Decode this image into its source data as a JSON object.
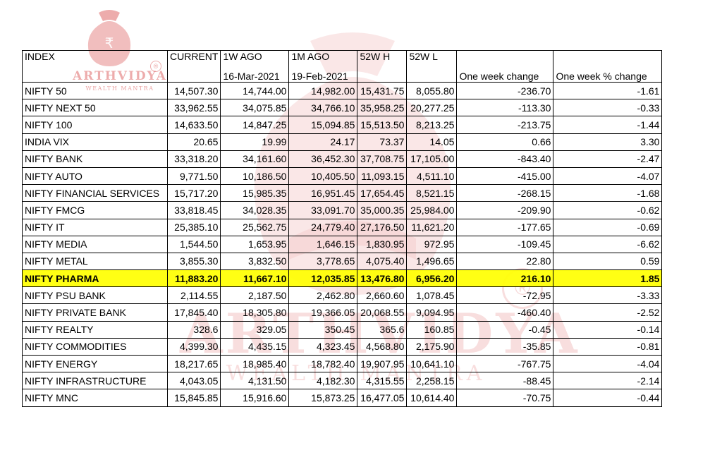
{
  "watermark": {
    "brand": "ARTHVIDYA",
    "tagline": "WEALTH MANTRA",
    "registered": "®",
    "rupee": "₹"
  },
  "columns": {
    "index": "INDEX",
    "current": "CURRENT",
    "w1": "1W AGO",
    "w1_date": "16-Mar-2021",
    "m1": "1M AGO",
    "m1_date": "19-Feb-2021",
    "high52": "52W H",
    "low52": "52W L",
    "week_change": "One week change",
    "week_pct": "One week % change"
  },
  "rows": [
    {
      "name": "NIFTY 50",
      "current": "14,507.30",
      "w1": "14,744.00",
      "m1": "14,982.00",
      "h52": "15,431.75",
      "l52": "8,055.80",
      "chg": "-236.70",
      "pct": "-1.61"
    },
    {
      "name": "NIFTY NEXT 50",
      "current": "33,962.55",
      "w1": "34,075.85",
      "m1": "34,766.10",
      "h52": "35,958.25",
      "l52": "20,277.25",
      "chg": "-113.30",
      "pct": "-0.33"
    },
    {
      "name": "NIFTY 100",
      "current": "14,633.50",
      "w1": "14,847.25",
      "m1": "15,094.85",
      "h52": "15,513.50",
      "l52": "8,213.25",
      "chg": "-213.75",
      "pct": "-1.44"
    },
    {
      "name": "INDIA VIX",
      "current": "20.65",
      "w1": "19.99",
      "m1": "24.17",
      "h52": "73.37",
      "l52": "14.05",
      "chg": "0.66",
      "pct": "3.30"
    },
    {
      "name": "NIFTY BANK",
      "current": "33,318.20",
      "w1": "34,161.60",
      "m1": "36,452.30",
      "h52": "37,708.75",
      "l52": "17,105.00",
      "chg": "-843.40",
      "pct": "-2.47"
    },
    {
      "name": "NIFTY AUTO",
      "current": "9,771.50",
      "w1": "10,186.50",
      "m1": "10,405.50",
      "h52": "11,093.15",
      "l52": "4,511.10",
      "chg": "-415.00",
      "pct": "-4.07"
    },
    {
      "name": "NIFTY FINANCIAL SERVICES",
      "current": "15,717.20",
      "w1": "15,985.35",
      "m1": "16,951.45",
      "h52": "17,654.45",
      "l52": "8,521.15",
      "chg": "-268.15",
      "pct": "-1.68"
    },
    {
      "name": "NIFTY FMCG",
      "current": "33,818.45",
      "w1": "34,028.35",
      "m1": "33,091.70",
      "h52": "35,000.35",
      "l52": "25,984.00",
      "chg": "-209.90",
      "pct": "-0.62"
    },
    {
      "name": "NIFTY IT",
      "current": "25,385.10",
      "w1": "25,562.75",
      "m1": "24,779.40",
      "h52": "27,176.50",
      "l52": "11,621.20",
      "chg": "-177.65",
      "pct": "-0.69"
    },
    {
      "name": "NIFTY MEDIA",
      "current": "1,544.50",
      "w1": "1,653.95",
      "m1": "1,646.15",
      "h52": "1,830.95",
      "l52": "972.95",
      "chg": "-109.45",
      "pct": "-6.62"
    },
    {
      "name": "NIFTY METAL",
      "current": "3,855.30",
      "w1": "3,832.50",
      "m1": "3,778.65",
      "h52": "4,075.40",
      "l52": "1,496.65",
      "chg": "22.80",
      "pct": "0.59"
    },
    {
      "name": "NIFTY PHARMA",
      "current": "11,883.20",
      "w1": "11,667.10",
      "m1": "12,035.85",
      "h52": "13,476.80",
      "l52": "6,956.20",
      "chg": "216.10",
      "pct": "1.85"
    },
    {
      "name": "NIFTY PSU BANK",
      "current": "2,114.55",
      "w1": "2,187.50",
      "m1": "2,462.80",
      "h52": "2,660.60",
      "l52": "1,078.45",
      "chg": "-72.95",
      "pct": "-3.33"
    },
    {
      "name": "NIFTY PRIVATE BANK",
      "current": "17,845.40",
      "w1": "18,305.80",
      "m1": "19,366.05",
      "h52": "20,068.55",
      "l52": "9,094.95",
      "chg": "-460.40",
      "pct": "-2.52"
    },
    {
      "name": "NIFTY REALTY",
      "current": "328.6",
      "w1": "329.05",
      "m1": "350.45",
      "h52": "365.6",
      "l52": "160.85",
      "chg": "-0.45",
      "pct": "-0.14"
    },
    {
      "name": "NIFTY COMMODITIES",
      "current": "4,399.30",
      "w1": "4,435.15",
      "m1": "4,323.45",
      "h52": "4,568.80",
      "l52": "2,175.90",
      "chg": "-35.85",
      "pct": "-0.81"
    },
    {
      "name": "NIFTY ENERGY",
      "current": "18,217.65",
      "w1": "18,985.40",
      "m1": "18,782.40",
      "h52": "19,907.95",
      "l52": "10,641.10",
      "chg": "-767.75",
      "pct": "-4.04"
    },
    {
      "name": "NIFTY INFRASTRUCTURE",
      "current": "4,043.05",
      "w1": "4,131.50",
      "m1": "4,182.30",
      "h52": "4,315.55",
      "l52": "2,258.15",
      "chg": "-88.45",
      "pct": "-2.14"
    },
    {
      "name": "NIFTY MNC",
      "current": "15,845.85",
      "w1": "15,916.60",
      "m1": "15,873.25",
      "h52": "16,477.05",
      "l52": "10,614.40",
      "chg": "-70.75",
      "pct": "-0.44"
    }
  ],
  "highlight_row": "NIFTY PHARMA",
  "highlight_color": "#ffff00",
  "watermark_color": "#d64646"
}
